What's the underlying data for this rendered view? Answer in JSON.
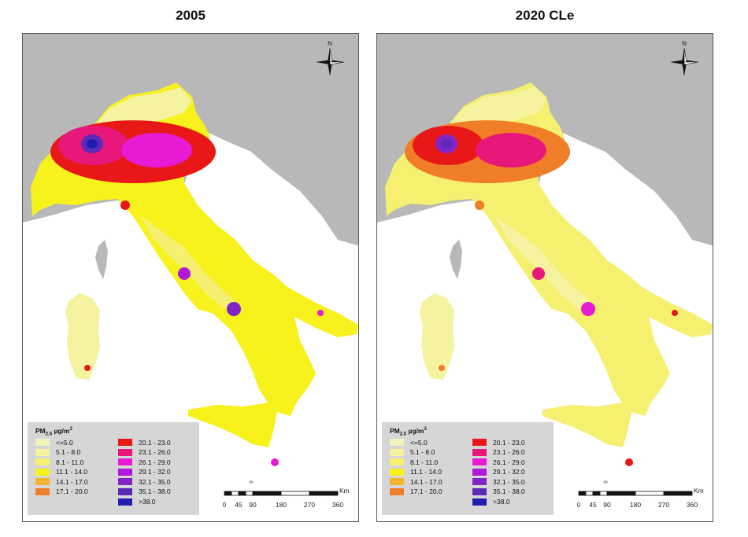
{
  "maps": [
    {
      "title": "2005",
      "scenario": "base"
    },
    {
      "title": "2020 CLe",
      "scenario": "future"
    }
  ],
  "compass": {
    "north_label": "N",
    "icon": "compass-rose-icon"
  },
  "legend": {
    "title": "PM2.5 µg/m³",
    "title_main": "PM",
    "title_sub": "2.5",
    "title_unit": " µg/m",
    "title_sup": "3",
    "classes": [
      {
        "label": "<=5.0",
        "color": "#f2f2b8"
      },
      {
        "label": "5.1 - 8.0",
        "color": "#f5f2a0"
      },
      {
        "label": "8.1 - 11.0",
        "color": "#f5f070"
      },
      {
        "label": "11.1 - 14.0",
        "color": "#f7f21c"
      },
      {
        "label": "14.1 - 17.0",
        "color": "#f5b430"
      },
      {
        "label": "17.1 - 20.0",
        "color": "#f07d28"
      },
      {
        "label": "20.1 - 23.0",
        "color": "#e81818"
      },
      {
        "label": "23.1 - 26.0",
        "color": "#e8177a"
      },
      {
        "label": "26.1 - 29.0",
        "color": "#e61bd3"
      },
      {
        "label": "29.1 - 32.0",
        "color": "#b019d8"
      },
      {
        "label": "32.1 - 35.0",
        "color": "#8324c8"
      },
      {
        "label": "35.1 - 38.0",
        "color": "#5b2ab8"
      },
      {
        "label": ">38.0",
        "color": "#1f1eb0"
      }
    ]
  },
  "scalebar": {
    "unit": "Km",
    "ticks": [
      "0",
      "45",
      "90",
      "180",
      "270",
      "360"
    ]
  },
  "colors": {
    "land_outside": "#b8b8b8",
    "sea": "#ffffff",
    "frame": "#555555"
  }
}
